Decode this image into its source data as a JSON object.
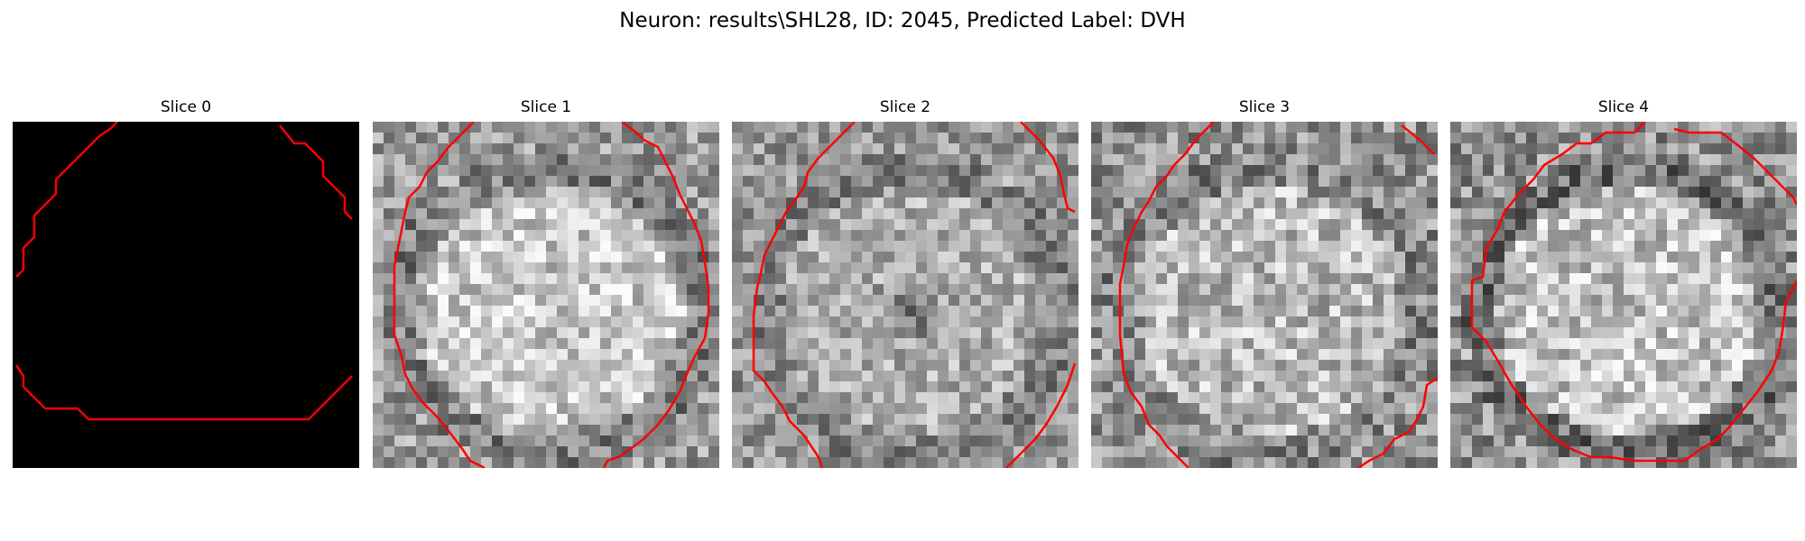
{
  "figure": {
    "title": "Neuron: results\\SHL28, ID: 2045, Predicted Label: DVH",
    "contour_color": "#ff0000"
  },
  "slices": [
    {
      "title": "Slice 0"
    },
    {
      "title": "Slice 1"
    },
    {
      "title": "Slice 2"
    },
    {
      "title": "Slice 3"
    },
    {
      "title": "Slice 4"
    }
  ]
}
